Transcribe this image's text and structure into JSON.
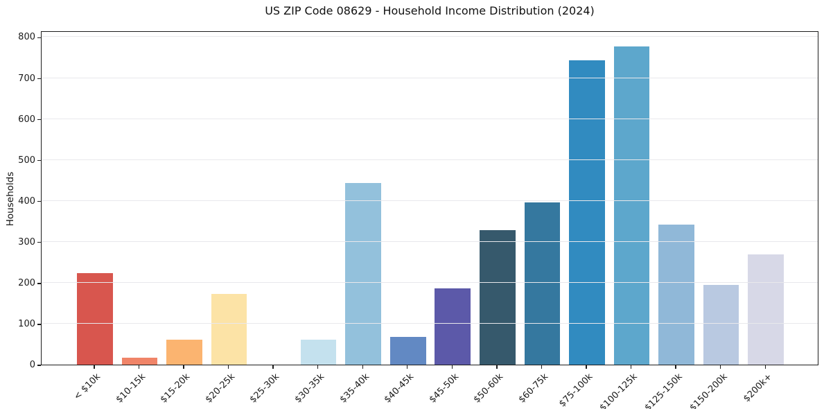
{
  "header": {
    "title": "US ZIP Code 08629 - Household Income Distribution (2024)"
  },
  "chart_data": {
    "type": "bar",
    "title": "US ZIP Code 08629 - Household Income Distribution (2024)",
    "xlabel": "",
    "ylabel": "Households",
    "categories": [
      "< $10k",
      "$10-15k",
      "$15-20k",
      "$20-25k",
      "$25-30k",
      "$30-35k",
      "$35-40k",
      "$40-45k",
      "$45-50k",
      "$50-60k",
      "$60-75k",
      "$75-100k",
      "$100-125k",
      "$125-150k",
      "$150-200k",
      "$200k+"
    ],
    "values": [
      224,
      17,
      61,
      172,
      0,
      61,
      444,
      68,
      187,
      329,
      396,
      743,
      777,
      342,
      195,
      269
    ],
    "bar_colors": [
      "#d8564e",
      "#f08468",
      "#fbb470",
      "#fce3a6",
      "#f6f0db",
      "#c4e1ee",
      "#93c1dc",
      "#6289c3",
      "#5c59a9",
      "#36596c",
      "#35789f",
      "#318bc0",
      "#5da7cc",
      "#90b8d8",
      "#b9c9e1",
      "#d7d8e7"
    ],
    "yticks": [
      0,
      100,
      200,
      300,
      400,
      500,
      600,
      700,
      800
    ],
    "ylim": [
      0,
      816
    ],
    "grid": "horizontal",
    "grid_color": "#e8e8ec",
    "spine_color": "#1c1c1c",
    "text_color": "#111111",
    "background": "#ffffff",
    "legend_position": "none"
  }
}
